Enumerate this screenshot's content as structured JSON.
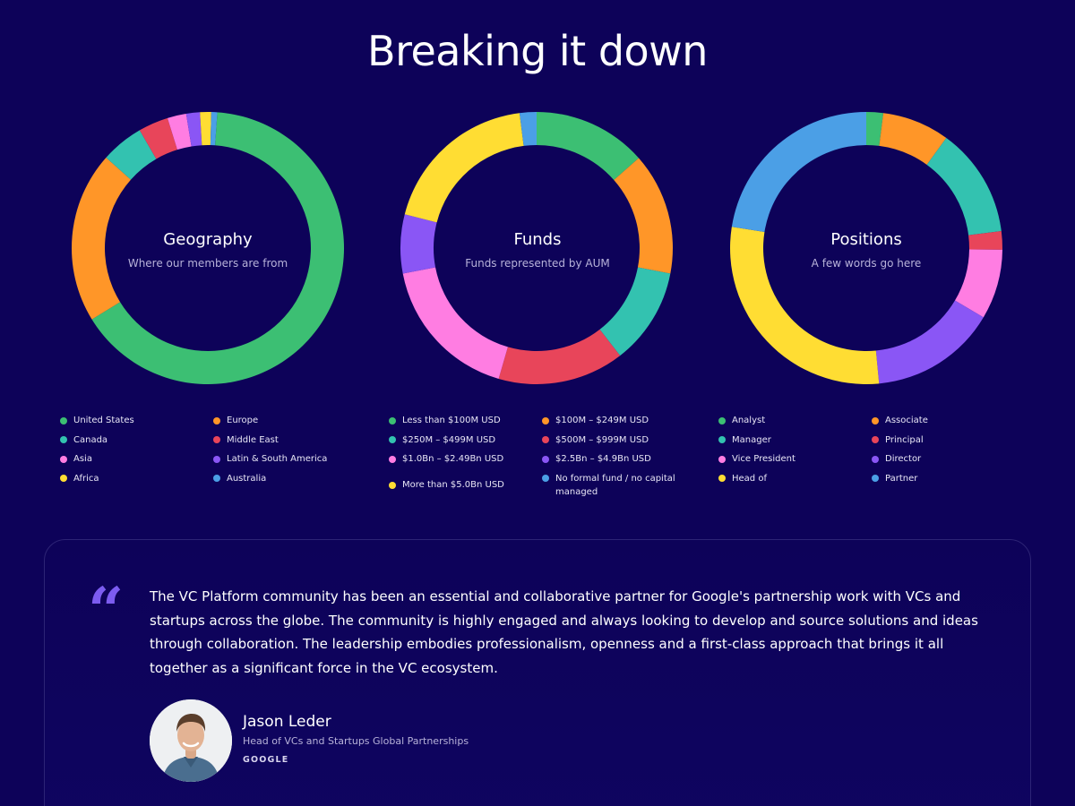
{
  "page": {
    "title": "Breaking it down"
  },
  "chart_data": [
    {
      "type": "pie",
      "title": "Geography",
      "subtitle": "Where our members are from",
      "slices": [
        {
          "label": "United States",
          "value": 64,
          "color": "#3cbf73"
        },
        {
          "label": "Europe",
          "value": 20,
          "color": "#ff9628"
        },
        {
          "label": "Canada",
          "value": 5,
          "color": "#33c2b0"
        },
        {
          "label": "Middle East",
          "value": 3.5,
          "color": "#e8455a"
        },
        {
          "label": "Asia",
          "value": 2.2,
          "color": "#ff7de2"
        },
        {
          "label": "Latin & South America",
          "value": 1.6,
          "color": "#8a56f5"
        },
        {
          "label": "Africa",
          "value": 1.3,
          "color": "#ffdd33"
        },
        {
          "label": "Australia",
          "value": 0.7,
          "color": "#4b9fe6"
        }
      ]
    },
    {
      "type": "pie",
      "title": "Funds",
      "subtitle": "Funds represented by AUM",
      "slices": [
        {
          "label": "Less than $100M USD",
          "value": 13.5,
          "color": "#3cbf73"
        },
        {
          "label": "$100M – $249M USD",
          "value": 14.5,
          "color": "#ff9628"
        },
        {
          "label": "$250M – $499M USD",
          "value": 11.5,
          "color": "#33c2b0"
        },
        {
          "label": "$500M – $999M USD",
          "value": 15,
          "color": "#e8455a"
        },
        {
          "label": "$1.0Bn – $2.49Bn USD",
          "value": 17.5,
          "color": "#ff7de2"
        },
        {
          "label": "$2.5Bn – $4.9Bn USD",
          "value": 7,
          "color": "#8a56f5"
        },
        {
          "label": "More than $5.0Bn USD",
          "value": 19,
          "color": "#ffdd33"
        },
        {
          "label": "No formal fund / no capital managed",
          "value": 2,
          "color": "#4b9fe6"
        }
      ]
    },
    {
      "type": "pie",
      "title": "Positions",
      "subtitle": "A few words go here",
      "slices": [
        {
          "label": "Analyst",
          "value": 2,
          "color": "#3cbf73"
        },
        {
          "label": "Associate",
          "value": 8,
          "color": "#ff9628"
        },
        {
          "label": "Manager",
          "value": 13,
          "color": "#33c2b0"
        },
        {
          "label": "Principal",
          "value": 2.2,
          "color": "#e8455a"
        },
        {
          "label": "Vice President",
          "value": 8.3,
          "color": "#ff7de2"
        },
        {
          "label": "Director",
          "value": 15,
          "color": "#8a56f5"
        },
        {
          "label": "Head of",
          "value": 29,
          "color": "#ffdd33"
        },
        {
          "label": "Partner",
          "value": 22.5,
          "color": "#4b9fe6"
        }
      ]
    }
  ],
  "testimonial": {
    "quote": "The VC Platform community has been an essential and collaborative partner for Google's partnership work with VCs and startups across the globe. The community is highly engaged and always looking to develop and source solutions and ideas through collaboration. The leadership embodies professionalism, openness and a first-class approach that brings it all together as a significant force in the VC ecosystem.",
    "name": "Jason Leder",
    "role": "Head of VCs and Startups Global Partnerships",
    "company": "GOOGLE",
    "quote_color": "#7c5cf0"
  }
}
